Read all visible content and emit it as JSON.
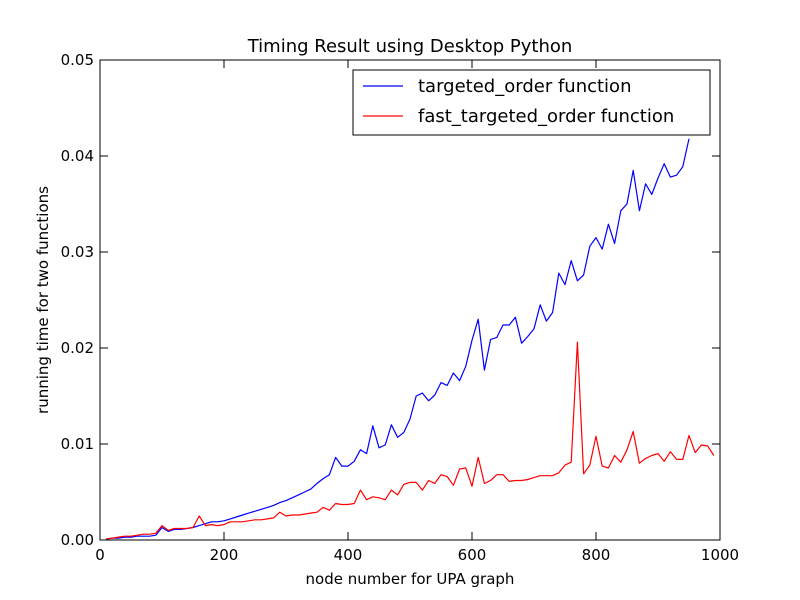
{
  "chart_data": {
    "type": "line",
    "title": "Timing Result using Desktop Python",
    "xlabel": "node number for UPA graph",
    "ylabel": "running time for two functions",
    "xlim": [
      0,
      1000
    ],
    "ylim": [
      0,
      0.05
    ],
    "xticks": [
      0,
      200,
      400,
      600,
      800,
      1000
    ],
    "xtick_labels": [
      "0",
      "200",
      "400",
      "600",
      "800",
      "1000"
    ],
    "yticks": [
      0.0,
      0.01,
      0.02,
      0.03,
      0.04,
      0.05
    ],
    "ytick_labels": [
      "0.00",
      "0.01",
      "0.02",
      "0.03",
      "0.04",
      "0.05"
    ],
    "grid": false,
    "legend_position": "top-right",
    "series": [
      {
        "name": "targeted_order function",
        "color": "#0000ff",
        "x": [
          10,
          20,
          30,
          40,
          50,
          60,
          70,
          80,
          90,
          100,
          110,
          120,
          130,
          140,
          150,
          160,
          170,
          180,
          190,
          200,
          210,
          220,
          230,
          240,
          250,
          260,
          270,
          280,
          290,
          300,
          310,
          320,
          330,
          340,
          350,
          360,
          370,
          380,
          390,
          400,
          410,
          420,
          430,
          440,
          450,
          460,
          470,
          480,
          490,
          500,
          510,
          520,
          530,
          540,
          550,
          560,
          570,
          580,
          590,
          600,
          610,
          620,
          630,
          640,
          650,
          660,
          670,
          680,
          690,
          700,
          710,
          720,
          730,
          740,
          750,
          760,
          770,
          780,
          790,
          800,
          810,
          820,
          830,
          840,
          850,
          860,
          870,
          880,
          890,
          900,
          910,
          920,
          930,
          940,
          950
        ],
        "y": [
          0.0001,
          0.0002,
          0.0002,
          0.0003,
          0.0003,
          0.0004,
          0.0004,
          0.0004,
          0.0005,
          0.0013,
          0.0009,
          0.0011,
          0.0011,
          0.0012,
          0.0013,
          0.0015,
          0.0017,
          0.0019,
          0.0019,
          0.002,
          0.0022,
          0.0024,
          0.0026,
          0.0028,
          0.003,
          0.0032,
          0.0034,
          0.0036,
          0.0039,
          0.0041,
          0.0044,
          0.0047,
          0.005,
          0.0053,
          0.0059,
          0.0064,
          0.0068,
          0.0086,
          0.0077,
          0.0077,
          0.0082,
          0.0094,
          0.009,
          0.0119,
          0.0096,
          0.0099,
          0.012,
          0.0107,
          0.0112,
          0.0126,
          0.015,
          0.0153,
          0.0145,
          0.0151,
          0.0164,
          0.0161,
          0.0174,
          0.0166,
          0.0181,
          0.0208,
          0.023,
          0.0177,
          0.0209,
          0.0211,
          0.0224,
          0.0224,
          0.0232,
          0.0205,
          0.0212,
          0.022,
          0.0245,
          0.0228,
          0.0237,
          0.0278,
          0.0266,
          0.0291,
          0.027,
          0.0276,
          0.0306,
          0.0315,
          0.0303,
          0.0329,
          0.0309,
          0.0343,
          0.035,
          0.0385,
          0.0343,
          0.0371,
          0.036,
          0.0377,
          0.0392,
          0.0378,
          0.038,
          0.0389,
          0.0418
        ]
      },
      {
        "name": "fast_targeted_order function",
        "color": "#ff0000",
        "x": [
          10,
          20,
          30,
          40,
          50,
          60,
          70,
          80,
          90,
          100,
          110,
          120,
          130,
          140,
          150,
          160,
          170,
          180,
          190,
          200,
          210,
          220,
          230,
          240,
          250,
          260,
          270,
          280,
          290,
          300,
          310,
          320,
          330,
          340,
          350,
          360,
          370,
          380,
          390,
          400,
          410,
          420,
          430,
          440,
          450,
          460,
          470,
          480,
          490,
          500,
          510,
          520,
          530,
          540,
          550,
          560,
          570,
          580,
          590,
          600,
          610,
          620,
          630,
          640,
          650,
          660,
          670,
          680,
          690,
          700,
          710,
          720,
          730,
          740,
          750,
          760,
          770,
          780,
          790,
          800,
          810,
          820,
          830,
          840,
          850,
          860,
          870,
          880,
          890,
          900,
          910,
          920,
          930,
          940,
          950,
          960,
          970,
          980,
          990
        ],
        "y": [
          0.0001,
          0.0002,
          0.0003,
          0.0004,
          0.0004,
          0.0005,
          0.0006,
          0.0006,
          0.0007,
          0.0015,
          0.001,
          0.0012,
          0.0012,
          0.0012,
          0.0013,
          0.0025,
          0.0015,
          0.0016,
          0.0015,
          0.0016,
          0.0019,
          0.0019,
          0.0019,
          0.002,
          0.0021,
          0.0021,
          0.0022,
          0.0023,
          0.0029,
          0.0025,
          0.0026,
          0.0026,
          0.0027,
          0.0028,
          0.0029,
          0.0034,
          0.0031,
          0.0038,
          0.0037,
          0.0037,
          0.0038,
          0.0052,
          0.0042,
          0.0045,
          0.0044,
          0.0042,
          0.0052,
          0.0047,
          0.0058,
          0.006,
          0.006,
          0.0052,
          0.0062,
          0.0059,
          0.0068,
          0.0066,
          0.0057,
          0.0074,
          0.0075,
          0.0056,
          0.0086,
          0.0059,
          0.0062,
          0.0068,
          0.0068,
          0.0061,
          0.0062,
          0.0062,
          0.0063,
          0.0065,
          0.0067,
          0.0067,
          0.0067,
          0.007,
          0.0078,
          0.0081,
          0.0206,
          0.0069,
          0.0078,
          0.0108,
          0.0077,
          0.0075,
          0.0088,
          0.0081,
          0.0094,
          0.0113,
          0.008,
          0.0085,
          0.0088,
          0.009,
          0.0082,
          0.0092,
          0.0084,
          0.0084,
          0.0109,
          0.0091,
          0.0099,
          0.0098,
          0.0088
        ]
      }
    ]
  }
}
